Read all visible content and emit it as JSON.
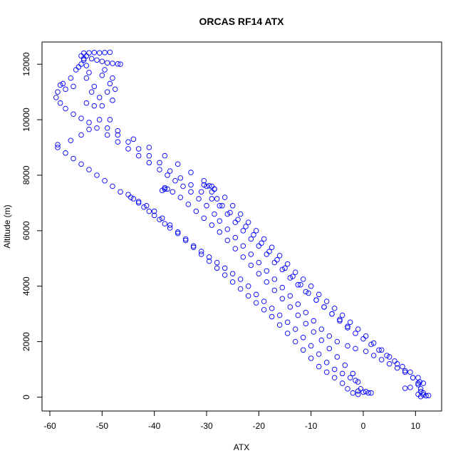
{
  "chart_data": {
    "type": "scatter",
    "title": "ORCAS RF14 ATX",
    "xlabel": "ATX",
    "ylabel": "Altitude (m)",
    "xlim": [
      -61.5,
      15
    ],
    "ylim": [
      -500,
      12800
    ],
    "xticks": [
      -60,
      -50,
      -40,
      -30,
      -20,
      -10,
      0,
      10
    ],
    "yticks": [
      0,
      2000,
      4000,
      6000,
      8000,
      10000,
      12000
    ],
    "grid": false,
    "marker": "open-circle",
    "marker_color": "#0000ff",
    "series": [
      {
        "values": [
          [
            -53.5,
            12400
          ],
          [
            -52.5,
            12410
          ],
          [
            -51.5,
            12420
          ],
          [
            -50.5,
            12410
          ],
          [
            -49.5,
            12420
          ],
          [
            -48.5,
            12430
          ],
          [
            -53.0,
            12300
          ],
          [
            -52.0,
            12200
          ],
          [
            -51.0,
            12150
          ],
          [
            -50.0,
            12100
          ],
          [
            -49.0,
            12050
          ],
          [
            -48.0,
            12030
          ],
          [
            -47.0,
            12010
          ],
          [
            -46.5,
            12000
          ],
          [
            -53.5,
            12200
          ],
          [
            -54.0,
            12000
          ],
          [
            -55.0,
            11800
          ],
          [
            -56.0,
            11500
          ],
          [
            -57.5,
            11300
          ],
          [
            -58.5,
            11000
          ],
          [
            -58.8,
            10800
          ],
          [
            -58.0,
            10600
          ],
          [
            -57.0,
            10400
          ],
          [
            -55.5,
            10200
          ],
          [
            -54.0,
            10050
          ],
          [
            -52.5,
            9900
          ],
          [
            -51.0,
            9700
          ],
          [
            -49.0,
            9450
          ],
          [
            -47.0,
            9200
          ],
          [
            -45.0,
            8950
          ],
          [
            -43.0,
            8700
          ],
          [
            -41.0,
            8450
          ],
          [
            -39.0,
            8200
          ],
          [
            -37.5,
            8000
          ],
          [
            -36.0,
            7800
          ],
          [
            -34.5,
            7600
          ],
          [
            -33.0,
            7400
          ],
          [
            -31.5,
            7150
          ],
          [
            -30.0,
            6900
          ],
          [
            -28.5,
            6600
          ],
          [
            -27.5,
            6350
          ],
          [
            -26.0,
            6050
          ],
          [
            -24.5,
            5750
          ],
          [
            -23.0,
            5450
          ],
          [
            -21.5,
            5150
          ],
          [
            -20.0,
            4850
          ],
          [
            -18.5,
            4550
          ],
          [
            -17.0,
            4250
          ],
          [
            -15.5,
            3950
          ],
          [
            -14.0,
            3650
          ],
          [
            -12.5,
            3350
          ],
          [
            -11.0,
            3050
          ],
          [
            -9.5,
            2750
          ],
          [
            -8.0,
            2450
          ],
          [
            -6.5,
            2200
          ],
          [
            -5.0,
            2000
          ],
          [
            -3.0,
            1850
          ],
          [
            -1.5,
            1750
          ],
          [
            0.5,
            1650
          ],
          [
            2.0,
            1500
          ],
          [
            3.5,
            1350
          ],
          [
            5.0,
            1200
          ],
          [
            6.5,
            1050
          ],
          [
            8.0,
            900
          ],
          [
            9.5,
            700
          ],
          [
            10.5,
            500
          ],
          [
            11.0,
            300
          ],
          [
            11.5,
            150
          ],
          [
            12.0,
            50
          ],
          [
            -53.0,
            11500
          ],
          [
            -52.0,
            11000
          ],
          [
            -51.5,
            10500
          ],
          [
            -50.5,
            10000
          ],
          [
            -49.0,
            9700
          ],
          [
            -47.0,
            9450
          ],
          [
            -45.0,
            9200
          ],
          [
            -43.0,
            8950
          ],
          [
            -41.0,
            8700
          ],
          [
            -39.0,
            8450
          ],
          [
            -37.0,
            8150
          ],
          [
            -35.0,
            7900
          ],
          [
            -33.0,
            7650
          ],
          [
            -31.0,
            7400
          ],
          [
            -29.0,
            7150
          ],
          [
            -27.5,
            6900
          ],
          [
            -26.0,
            6600
          ],
          [
            -24.5,
            6300
          ],
          [
            -23.0,
            6000
          ],
          [
            -21.5,
            5700
          ],
          [
            -20.0,
            5450
          ],
          [
            -18.5,
            5150
          ],
          [
            -17.0,
            4850
          ],
          [
            -15.5,
            4600
          ],
          [
            -14.0,
            4300
          ],
          [
            -12.5,
            4050
          ],
          [
            -11.0,
            3800
          ],
          [
            -9.0,
            3500
          ],
          [
            -7.5,
            3250
          ],
          [
            -6.0,
            3000
          ],
          [
            -4.5,
            2750
          ],
          [
            -3.0,
            2500
          ],
          [
            -1.5,
            2300
          ],
          [
            0.0,
            2100
          ],
          [
            1.5,
            1900
          ],
          [
            3.0,
            1700
          ],
          [
            4.5,
            1500
          ],
          [
            6.0,
            1300
          ],
          [
            7.5,
            1100
          ],
          [
            9.0,
            900
          ],
          [
            10.5,
            700
          ],
          [
            11.5,
            500
          ],
          [
            -48.0,
            11500
          ],
          [
            -49.0,
            11000
          ],
          [
            -50.0,
            10500
          ],
          [
            -48.5,
            10000
          ],
          [
            -47.0,
            9600
          ],
          [
            -44.0,
            9300
          ],
          [
            -41.0,
            9000
          ],
          [
            -38.0,
            8700
          ],
          [
            -35.5,
            8400
          ],
          [
            -33.0,
            8100
          ],
          [
            -30.5,
            7800
          ],
          [
            -28.5,
            7500
          ],
          [
            -26.5,
            7200
          ],
          [
            -25.0,
            6900
          ],
          [
            -23.5,
            6600
          ],
          [
            -22.0,
            6300
          ],
          [
            -20.5,
            6000
          ],
          [
            -19.0,
            5700
          ],
          [
            -17.5,
            5400
          ],
          [
            -16.0,
            5100
          ],
          [
            -14.5,
            4800
          ],
          [
            -13.0,
            4500
          ],
          [
            -11.5,
            4250
          ],
          [
            -10.0,
            4000
          ],
          [
            -8.5,
            3700
          ],
          [
            -7.0,
            3450
          ],
          [
            -5.5,
            3200
          ],
          [
            -4.0,
            2950
          ],
          [
            -2.5,
            2700
          ],
          [
            -1.0,
            2450
          ],
          [
            0.5,
            2200
          ],
          [
            2.0,
            1950
          ],
          [
            3.5,
            1700
          ],
          [
            5.0,
            1450
          ],
          [
            6.5,
            1200
          ],
          [
            8.0,
            950
          ],
          [
            9.5,
            700
          ],
          [
            10.5,
            450
          ],
          [
            11.0,
            200
          ],
          [
            -30.0,
            7600
          ],
          [
            -29.0,
            7400
          ],
          [
            -28.0,
            7150
          ],
          [
            -27.0,
            6900
          ],
          [
            -25.5,
            6650
          ],
          [
            -24.0,
            6400
          ],
          [
            -22.5,
            6150
          ],
          [
            -21.0,
            5850
          ],
          [
            -19.5,
            5550
          ],
          [
            -18.0,
            5250
          ],
          [
            -16.5,
            4950
          ],
          [
            -15.0,
            4650
          ],
          [
            -13.5,
            4350
          ],
          [
            -12.0,
            4050
          ],
          [
            -10.5,
            3750
          ],
          [
            -9.0,
            3500
          ],
          [
            -7.5,
            3250
          ],
          [
            -6.0,
            3000
          ],
          [
            -4.5,
            2800
          ],
          [
            -3.0,
            2550
          ],
          [
            -38.0,
            7500
          ],
          [
            -36.5,
            7400
          ],
          [
            -35.0,
            7200
          ],
          [
            -33.5,
            6950
          ],
          [
            -32.0,
            6700
          ],
          [
            -30.5,
            6450
          ],
          [
            -29.0,
            6200
          ],
          [
            -27.5,
            5950
          ],
          [
            -26.0,
            5650
          ],
          [
            -24.5,
            5350
          ],
          [
            -23.0,
            5050
          ],
          [
            -21.5,
            4750
          ],
          [
            -20.0,
            4450
          ],
          [
            -18.5,
            4150
          ],
          [
            -17.0,
            3850
          ],
          [
            -15.5,
            3550
          ],
          [
            -14.0,
            3250
          ],
          [
            -12.5,
            2950
          ],
          [
            -11.0,
            2650
          ],
          [
            -9.5,
            2350
          ],
          [
            -8.0,
            2050
          ],
          [
            -6.5,
            1750
          ],
          [
            -5.0,
            1450
          ],
          [
            -3.5,
            1150
          ],
          [
            -2.0,
            850
          ],
          [
            -1.0,
            550
          ],
          [
            -0.5,
            300
          ],
          [
            0.5,
            200
          ],
          [
            1.5,
            150
          ],
          [
            -45.0,
            7300
          ],
          [
            -44.0,
            7150
          ],
          [
            -43.0,
            7000
          ],
          [
            -42.0,
            6850
          ],
          [
            -41.0,
            6700
          ],
          [
            -40.0,
            6550
          ],
          [
            -39.0,
            6400
          ],
          [
            -38.0,
            6250
          ],
          [
            -37.0,
            6100
          ],
          [
            -35.5,
            5900
          ],
          [
            -34.0,
            5650
          ],
          [
            -32.5,
            5400
          ],
          [
            -31.0,
            5150
          ],
          [
            -29.5,
            4900
          ],
          [
            -28.0,
            4650
          ],
          [
            -26.5,
            4400
          ],
          [
            -25.0,
            4150
          ],
          [
            -23.5,
            3900
          ],
          [
            -22.0,
            3650
          ],
          [
            -20.5,
            3400
          ],
          [
            -19.0,
            3150
          ],
          [
            -17.5,
            2900
          ],
          [
            -16.0,
            2600
          ],
          [
            -14.5,
            2300
          ],
          [
            -13.0,
            2000
          ],
          [
            -11.5,
            1700
          ],
          [
            -10.0,
            1400
          ],
          [
            -8.5,
            1100
          ],
          [
            -7.0,
            900
          ],
          [
            -5.5,
            700
          ],
          [
            -4.0,
            500
          ],
          [
            -3.0,
            300
          ],
          [
            -2.0,
            150
          ],
          [
            -1.0,
            100
          ],
          [
            -44.5,
            7200
          ],
          [
            -43.0,
            7050
          ],
          [
            -41.5,
            6900
          ],
          [
            -40.0,
            6700
          ],
          [
            -38.5,
            6450
          ],
          [
            -37.0,
            6200
          ],
          [
            -35.5,
            5950
          ],
          [
            -34.0,
            5700
          ],
          [
            -32.5,
            5450
          ],
          [
            -31.0,
            5250
          ],
          [
            -29.5,
            5050
          ],
          [
            -28.0,
            4850
          ],
          [
            -26.5,
            4650
          ],
          [
            -25.0,
            4450
          ],
          [
            -23.5,
            4250
          ],
          [
            -22.0,
            4000
          ],
          [
            -20.5,
            3700
          ],
          [
            -19.0,
            3450
          ],
          [
            -17.5,
            3200
          ],
          [
            -16.0,
            2950
          ],
          [
            -14.5,
            2700
          ],
          [
            -13.0,
            2450
          ],
          [
            -11.5,
            2150
          ],
          [
            -10.0,
            1850
          ],
          [
            -8.5,
            1550
          ],
          [
            -7.0,
            1250
          ],
          [
            -5.5,
            1000
          ],
          [
            -4.0,
            850
          ],
          [
            -2.5,
            700
          ],
          [
            -1.5,
            600
          ],
          [
            -58.5,
            9000
          ],
          [
            -57.0,
            8800
          ],
          [
            -55.5,
            8600
          ],
          [
            -54.0,
            8400
          ],
          [
            -52.5,
            8200
          ],
          [
            -51.0,
            8000
          ],
          [
            -49.5,
            7800
          ],
          [
            -48.0,
            7600
          ],
          [
            -46.5,
            7400
          ],
          [
            -58.5,
            9100
          ],
          [
            -56.0,
            9250
          ],
          [
            -54.0,
            9450
          ],
          [
            -52.5,
            9650
          ],
          [
            -53.5,
            12150
          ],
          [
            -54.0,
            12300
          ],
          [
            -54.5,
            11900
          ],
          [
            -53.0,
            11950
          ],
          [
            -52.5,
            11700
          ],
          [
            -51.5,
            11200
          ],
          [
            -50.0,
            11600
          ],
          [
            -49.5,
            11800
          ],
          [
            -48.5,
            11300
          ],
          [
            -47.5,
            11100
          ],
          [
            -48.0,
            10700
          ],
          [
            -50.5,
            10800
          ],
          [
            -53.0,
            10600
          ],
          [
            -55.5,
            11200
          ],
          [
            -57.0,
            11100
          ],
          [
            -58.0,
            11250
          ],
          [
            -38.5,
            7450
          ],
          [
            -38.0,
            7550
          ],
          [
            -37.5,
            7500
          ],
          [
            -30.5,
            7650
          ],
          [
            -29.5,
            7620
          ],
          [
            -29.0,
            7600
          ],
          [
            -28.5,
            7500
          ],
          [
            1.0,
            150
          ],
          [
            0.0,
            180
          ],
          [
            -1.0,
            220
          ],
          [
            11.5,
            80
          ],
          [
            10.5,
            100
          ],
          [
            12.5,
            60
          ],
          [
            11.0,
            20
          ],
          [
            10.8,
            550
          ],
          [
            9.0,
            350
          ],
          [
            8.0,
            320
          ]
        ]
      }
    ]
  }
}
